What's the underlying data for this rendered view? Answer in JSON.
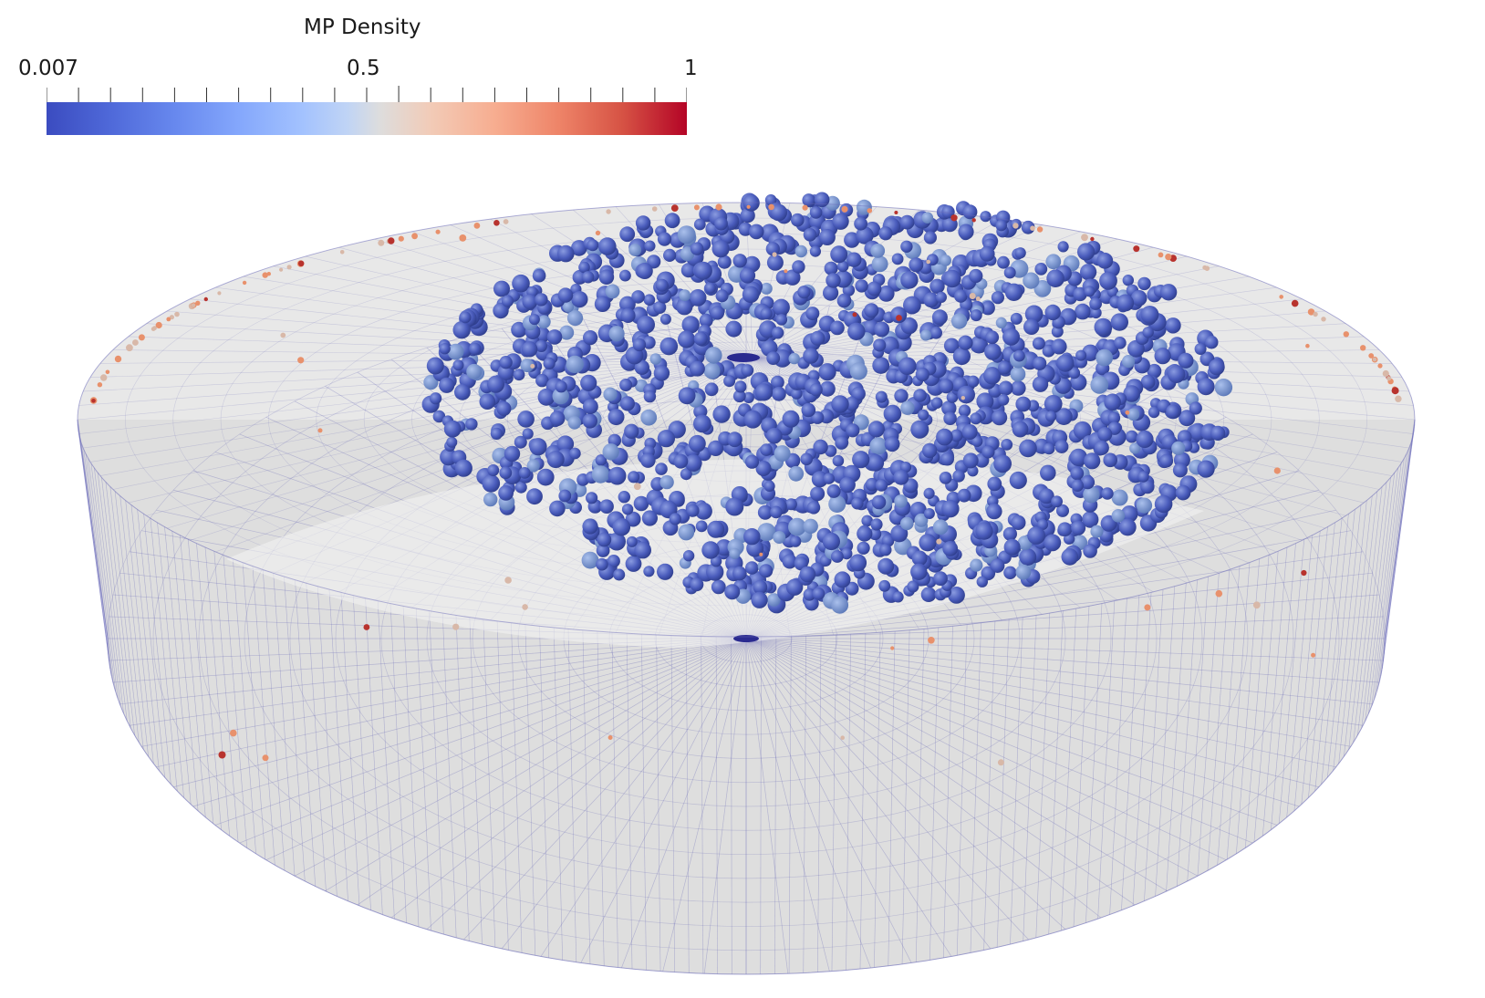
{
  "legend": {
    "title": "MP Density",
    "min_label": "0.007",
    "mid_label": "0.5",
    "max_label": "1",
    "range": [
      0.007,
      1
    ],
    "colormap": "cool-to-warm",
    "colors": {
      "low": "#3b4cc0",
      "mid": "#dddddd",
      "high": "#b40426"
    }
  },
  "scene": {
    "description_type": "3d-render",
    "object": "cylinder-mesh",
    "mesh_color": "#6a6ab8",
    "surface_color": "#e2e2e2",
    "particle_color_dominant": "#4a5db8",
    "particle_color_sparse": "#e8916c"
  }
}
